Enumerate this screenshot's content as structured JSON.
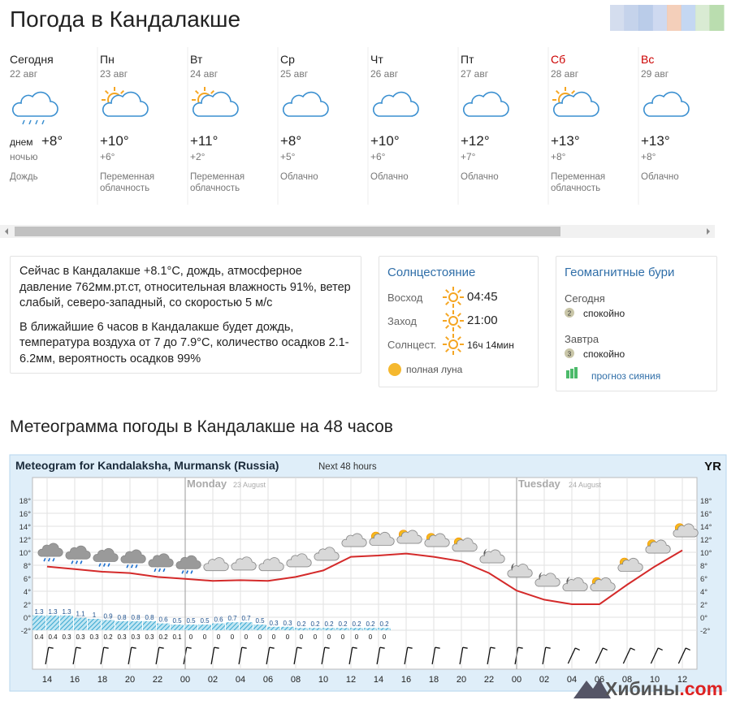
{
  "header": {
    "title": "Погода в Кандалакше"
  },
  "forecast": {
    "days": [
      {
        "weekday": "Сегодня",
        "date": "22 авг",
        "day_label": "днем",
        "temp": "+8°",
        "night_label": "ночью",
        "condition": "Дождь"
      },
      {
        "weekday": "Пн",
        "date": "23 авг",
        "temp": "+10°",
        "night_temp": "+6°",
        "condition": "Переменная облачность"
      },
      {
        "weekday": "Вт",
        "date": "24 авг",
        "temp": "+11°",
        "night_temp": "+2°",
        "condition": "Переменная облачность"
      },
      {
        "weekday": "Ср",
        "date": "25 авг",
        "temp": "+8°",
        "night_temp": "+5°",
        "condition": "Облачно"
      },
      {
        "weekday": "Чт",
        "date": "26 авг",
        "temp": "+10°",
        "night_temp": "+6°",
        "condition": "Облачно"
      },
      {
        "weekday": "Пт",
        "date": "27 авг",
        "temp": "+12°",
        "night_temp": "+7°",
        "condition": "Облачно"
      },
      {
        "weekday": "Сб",
        "date": "28 авг",
        "temp": "+13°",
        "night_temp": "+8°",
        "condition": "Переменная облачность",
        "color": "#cc0000"
      },
      {
        "weekday": "Вс",
        "date": "29 авг",
        "temp": "+13°",
        "night_temp": "+8°",
        "condition": "Облачно",
        "color": "#cc0000"
      }
    ]
  },
  "current": {
    "paragraphs": [
      "Сейчас в Кандалакше +8.1°C, дождь, атмосферное давление 762мм.рт.ст, относительная влажность 91%, ветер слабый, северо-западный, со скоростью 5 м/с",
      "В ближайшие 6 часов в Кандалакше будет дождь, температура воздуха от 7 до 7.9°C, количество осадков 2.1-6.2мм, вероятность осадков 99%"
    ]
  },
  "sun": {
    "title": "Солнцестояние",
    "rows": [
      {
        "label": "Восход",
        "value": "04:45"
      },
      {
        "label": "Заход",
        "value": "21:00"
      },
      {
        "label": "Солнцест.",
        "value": "16ч 14мин"
      }
    ],
    "moon": "полная луна"
  },
  "geomagnetic": {
    "title": "Геомагнитные бури",
    "days": [
      {
        "label": "Сегодня",
        "level": "2",
        "status": "спокойно"
      },
      {
        "label": "Завтра",
        "level": "3",
        "status": "спокойно"
      }
    ],
    "link": "прогноз сияния"
  },
  "meteogram_section": {
    "title": "Метеограмма погоды в Кандалакше на 48 часов"
  },
  "meteogram": {
    "title": "Meteogram for Kandalaksha, Murmansk (Russia)",
    "subtitle": "Next 48 hours",
    "logo": "YR",
    "days": [
      {
        "name": "Monday",
        "date": "23 August"
      },
      {
        "name": "Tuesday",
        "date": "24 August"
      }
    ],
    "hours": [
      "14",
      "16",
      "18",
      "20",
      "22",
      "00",
      "02",
      "04",
      "06",
      "08",
      "10",
      "12",
      "14",
      "16",
      "18",
      "20",
      "22",
      "00",
      "02",
      "04",
      "06",
      "08",
      "10",
      "12"
    ],
    "ylim": [
      -3,
      20
    ],
    "yticks": [
      {
        "value": 18,
        "label": "18°"
      },
      {
        "value": 16,
        "label": "16°"
      },
      {
        "value": 14,
        "label": "14°"
      },
      {
        "value": 12,
        "label": "12°"
      },
      {
        "value": 10,
        "label": "10°"
      },
      {
        "value": 8,
        "label": "8°"
      },
      {
        "value": 6,
        "label": "6°"
      },
      {
        "value": 4,
        "label": "4°"
      },
      {
        "value": 2,
        "label": "2°"
      },
      {
        "value": 0,
        "label": "0°"
      },
      {
        "value": -2,
        "label": "-2°"
      }
    ],
    "temperature": {
      "color": "#d42a2a",
      "values": [
        7.8,
        7.4,
        7.0,
        6.8,
        6.2,
        5.9,
        5.6,
        5.7,
        5.6,
        6.2,
        7.2,
        9.3,
        9.5,
        9.8,
        9.3,
        8.6,
        6.8,
        4.1,
        2.7,
        2.0,
        2.0,
        5.0,
        7.8,
        10.3
      ]
    },
    "precipitation": {
      "max": [
        1.3,
        1.3,
        1.3,
        1.1,
        1.0,
        0.9,
        0.8,
        0.8,
        0.8,
        0.6,
        0.5,
        0.5,
        0.5,
        0.6,
        0.7,
        0.7,
        0.5,
        0.3,
        0.3,
        0.2,
        0.2,
        0.2,
        0.2,
        0.2,
        0.2,
        0.2
      ],
      "min": [
        0.4,
        0.4,
        0.3,
        0.3,
        0.3,
        0.2,
        0.3,
        0.3,
        0.3,
        0.2,
        0.1,
        0,
        0,
        0,
        0,
        0,
        0,
        0,
        0,
        0,
        0,
        0,
        0,
        0,
        0,
        0
      ]
    }
  },
  "watermark": {
    "name": "Хибины",
    "domain": ".com"
  }
}
